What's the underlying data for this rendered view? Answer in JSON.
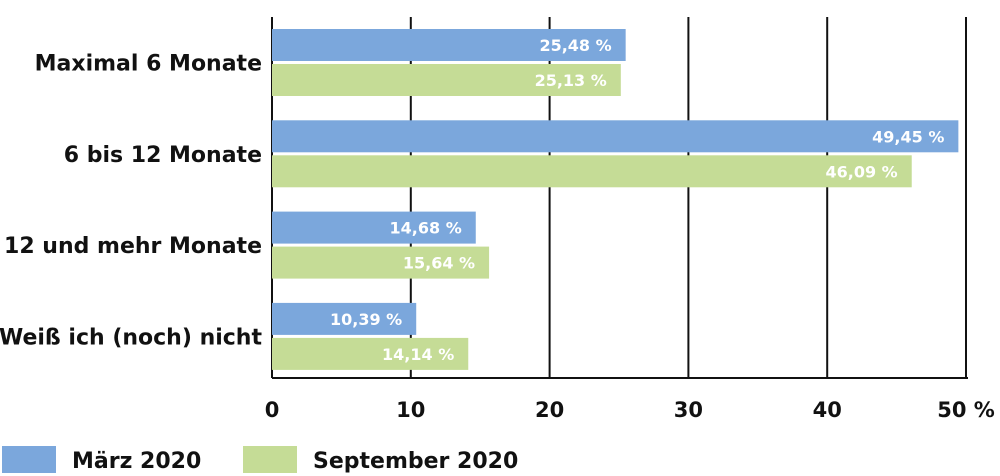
{
  "chart_data": {
    "type": "bar",
    "orientation": "horizontal",
    "categories": [
      "Maximal 6 Monate",
      "6 bis 12 Monate",
      "12 und mehr Monate",
      "Weiß ich (noch) nicht"
    ],
    "series": [
      {
        "name": "März 2020",
        "color": "#7ba7dc",
        "values": [
          25.48,
          49.45,
          14.68,
          10.39
        ],
        "labels": [
          "25,48 %",
          "49,45 %",
          "14,68 %",
          "10,39 %"
        ]
      },
      {
        "name": "September 2020",
        "color": "#c5dc96",
        "values": [
          25.13,
          46.09,
          15.64,
          14.14
        ],
        "labels": [
          "25,13 %",
          "46,09 %",
          "15,64 %",
          "14,14 %"
        ]
      }
    ],
    "xlim": [
      0,
      50
    ],
    "ticks": [
      0,
      10,
      20,
      30,
      40,
      50
    ],
    "tick_labels": [
      "0",
      "10",
      "20",
      "30",
      "40",
      "50 %"
    ],
    "grid": true,
    "legend_placement": "bottom-left"
  }
}
